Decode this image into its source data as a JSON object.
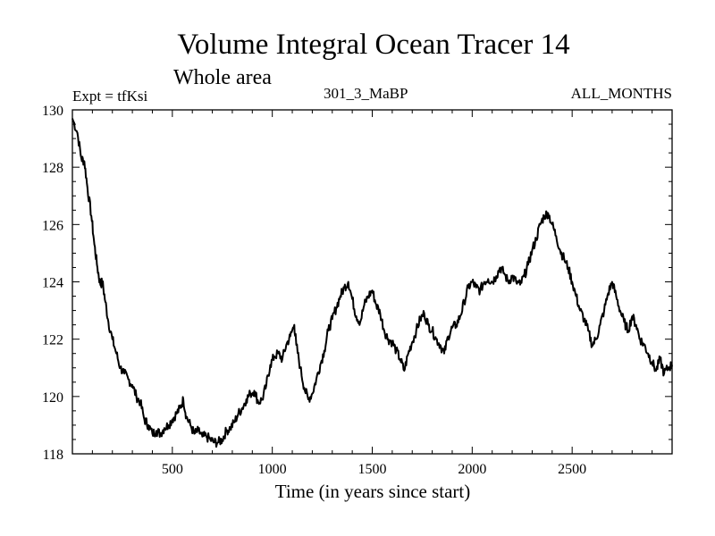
{
  "chart_data": {
    "type": "line",
    "title": "Volume Integral Ocean Tracer 14",
    "subtitle": "Whole area",
    "experiment_label": "Expt = tfKsi",
    "run_label": "301_3_MaBP",
    "months_label": "ALL_MONTHS",
    "xlabel": "Time (in years since start)",
    "ylabel": "",
    "xlim": [
      0,
      3000
    ],
    "ylim": [
      118,
      130
    ],
    "x_ticks": [
      500,
      1000,
      1500,
      2000,
      2500
    ],
    "y_ticks": [
      118,
      120,
      122,
      124,
      126,
      128,
      130
    ],
    "grid": false,
    "series": [
      {
        "name": "Ocean Tracer 14",
        "color": "#000000",
        "points": [
          [
            0,
            129.7
          ],
          [
            25,
            129.2
          ],
          [
            45,
            128.3
          ],
          [
            60,
            128.2
          ],
          [
            75,
            127.3
          ],
          [
            95,
            126.3
          ],
          [
            110,
            125.3
          ],
          [
            125,
            124.5
          ],
          [
            140,
            123.9
          ],
          [
            150,
            124.0
          ],
          [
            165,
            123.3
          ],
          [
            180,
            122.6
          ],
          [
            200,
            122.0
          ],
          [
            220,
            121.5
          ],
          [
            240,
            121.0
          ],
          [
            260,
            120.8
          ],
          [
            280,
            120.6
          ],
          [
            300,
            120.4
          ],
          [
            320,
            120.0
          ],
          [
            340,
            119.8
          ],
          [
            360,
            119.2
          ],
          [
            380,
            119.0
          ],
          [
            400,
            118.7
          ],
          [
            420,
            118.8
          ],
          [
            440,
            118.7
          ],
          [
            460,
            118.9
          ],
          [
            480,
            119.0
          ],
          [
            500,
            119.2
          ],
          [
            520,
            119.4
          ],
          [
            540,
            119.6
          ],
          [
            555,
            119.9
          ],
          [
            570,
            119.3
          ],
          [
            590,
            119.0
          ],
          [
            610,
            118.7
          ],
          [
            630,
            118.8
          ],
          [
            650,
            118.6
          ],
          [
            670,
            118.6
          ],
          [
            690,
            118.5
          ],
          [
            710,
            118.4
          ],
          [
            730,
            118.4
          ],
          [
            750,
            118.5
          ],
          [
            770,
            118.8
          ],
          [
            790,
            118.9
          ],
          [
            810,
            119.1
          ],
          [
            830,
            119.4
          ],
          [
            850,
            119.6
          ],
          [
            870,
            119.9
          ],
          [
            890,
            120.1
          ],
          [
            910,
            120.2
          ],
          [
            930,
            119.8
          ],
          [
            950,
            119.9
          ],
          [
            970,
            120.4
          ],
          [
            990,
            121.1
          ],
          [
            1010,
            121.4
          ],
          [
            1030,
            121.5
          ],
          [
            1050,
            121.3
          ],
          [
            1070,
            121.8
          ],
          [
            1090,
            122.1
          ],
          [
            1110,
            122.5
          ],
          [
            1120,
            121.8
          ],
          [
            1140,
            121.0
          ],
          [
            1160,
            120.3
          ],
          [
            1180,
            119.9
          ],
          [
            1200,
            120.1
          ],
          [
            1220,
            120.6
          ],
          [
            1240,
            121.1
          ],
          [
            1260,
            121.6
          ],
          [
            1280,
            122.3
          ],
          [
            1300,
            122.7
          ],
          [
            1320,
            123.1
          ],
          [
            1340,
            123.5
          ],
          [
            1360,
            123.8
          ],
          [
            1380,
            124.0
          ],
          [
            1400,
            123.4
          ],
          [
            1420,
            122.8
          ],
          [
            1440,
            122.6
          ],
          [
            1460,
            123.2
          ],
          [
            1480,
            123.5
          ],
          [
            1500,
            123.7
          ],
          [
            1520,
            123.2
          ],
          [
            1540,
            122.9
          ],
          [
            1560,
            122.3
          ],
          [
            1580,
            122.0
          ],
          [
            1600,
            121.9
          ],
          [
            1620,
            121.6
          ],
          [
            1640,
            121.3
          ],
          [
            1660,
            120.9
          ],
          [
            1680,
            121.5
          ],
          [
            1700,
            121.9
          ],
          [
            1720,
            122.3
          ],
          [
            1740,
            122.7
          ],
          [
            1760,
            122.9
          ],
          [
            1780,
            122.5
          ],
          [
            1800,
            122.3
          ],
          [
            1820,
            122.0
          ],
          [
            1840,
            121.8
          ],
          [
            1860,
            121.5
          ],
          [
            1880,
            122.1
          ],
          [
            1900,
            122.4
          ],
          [
            1920,
            122.5
          ],
          [
            1940,
            122.8
          ],
          [
            1960,
            123.3
          ],
          [
            1980,
            123.8
          ],
          [
            2000,
            124.0
          ],
          [
            2020,
            123.8
          ],
          [
            2040,
            123.7
          ],
          [
            2060,
            124.0
          ],
          [
            2080,
            124.1
          ],
          [
            2100,
            124.0
          ],
          [
            2120,
            124.2
          ],
          [
            2140,
            124.5
          ],
          [
            2160,
            124.3
          ],
          [
            2180,
            124.0
          ],
          [
            2200,
            124.2
          ],
          [
            2220,
            124.0
          ],
          [
            2240,
            123.9
          ],
          [
            2260,
            124.2
          ],
          [
            2280,
            124.6
          ],
          [
            2300,
            125.1
          ],
          [
            2320,
            125.5
          ],
          [
            2340,
            126.0
          ],
          [
            2360,
            126.3
          ],
          [
            2380,
            126.4
          ],
          [
            2400,
            126.0
          ],
          [
            2420,
            125.6
          ],
          [
            2440,
            125.1
          ],
          [
            2460,
            124.8
          ],
          [
            2480,
            124.5
          ],
          [
            2500,
            124.0
          ],
          [
            2520,
            123.5
          ],
          [
            2540,
            123.0
          ],
          [
            2560,
            122.7
          ],
          [
            2580,
            122.3
          ],
          [
            2600,
            121.8
          ],
          [
            2620,
            122.0
          ],
          [
            2640,
            122.5
          ],
          [
            2660,
            123.0
          ],
          [
            2680,
            123.6
          ],
          [
            2700,
            124.0
          ],
          [
            2720,
            123.5
          ],
          [
            2740,
            123.0
          ],
          [
            2760,
            122.6
          ],
          [
            2780,
            122.3
          ],
          [
            2800,
            122.8
          ],
          [
            2820,
            122.5
          ],
          [
            2840,
            122.0
          ],
          [
            2860,
            121.8
          ],
          [
            2880,
            121.5
          ],
          [
            2900,
            121.2
          ],
          [
            2920,
            120.9
          ],
          [
            2940,
            121.3
          ],
          [
            2960,
            120.8
          ],
          [
            2980,
            121.0
          ],
          [
            3000,
            121.1
          ]
        ]
      }
    ]
  }
}
